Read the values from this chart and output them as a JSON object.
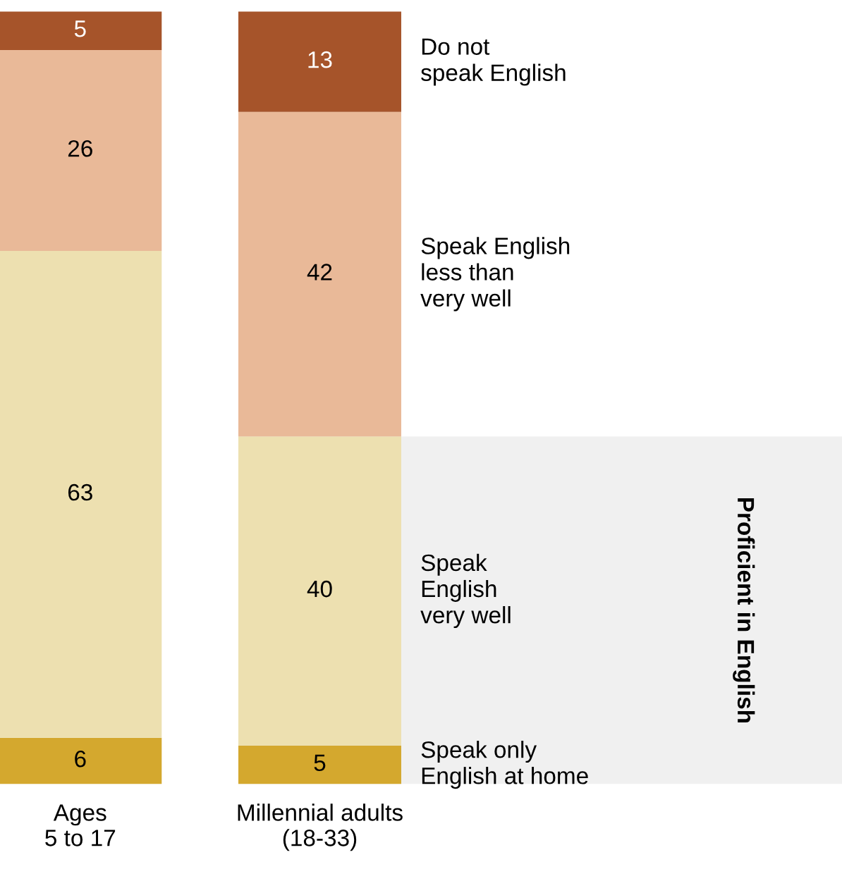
{
  "chart_data": {
    "type": "bar",
    "stacked": true,
    "data_labels": true,
    "legend": false,
    "grid": false,
    "categories": [
      "Ages\n5 to 17",
      "Millennial adults\n(18-33)"
    ],
    "series": [
      {
        "name": "Speak only\nEnglish at home",
        "color": "#d4a82e",
        "values": [
          6,
          5
        ]
      },
      {
        "name": "Speak\nEnglish\nvery well",
        "color": "#ede0b0",
        "values": [
          63,
          40
        ]
      },
      {
        "name": "Speak English\nless than\nvery well",
        "color": "#e9b998",
        "values": [
          26,
          42
        ]
      },
      {
        "name": "Do not\nspeak English",
        "color": "#a6542a",
        "values": [
          5,
          13
        ]
      }
    ],
    "bands": [
      {
        "axis": "y",
        "from": 0,
        "to": 45,
        "label": "Proficient in English",
        "color": "#f0f0f0"
      }
    ]
  }
}
